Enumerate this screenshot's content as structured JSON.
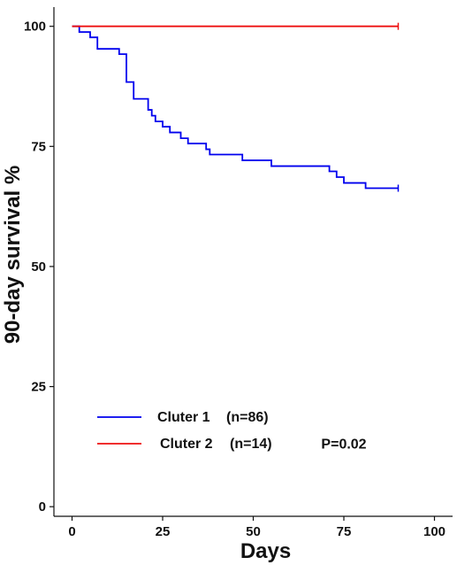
{
  "chart_data": {
    "type": "line",
    "subtype": "kaplan-meier step",
    "title": "",
    "xlabel": "Days",
    "ylabel": "90-day survival %",
    "xlim": [
      -5,
      105
    ],
    "ylim": [
      -2,
      104
    ],
    "xticks": [
      0,
      25,
      50,
      75,
      100
    ],
    "yticks": [
      0,
      25,
      50,
      75,
      100
    ],
    "xtick_labels": [
      "0",
      "25",
      "50",
      "75",
      "100"
    ],
    "ytick_labels": [
      "0",
      "25",
      "50",
      "75",
      "100"
    ],
    "grid": false,
    "legend_position": "bottom-left",
    "series": [
      {
        "name": "Cluter 1",
        "n_label": "(n=86)",
        "color": "#0000ee",
        "censor_marker": true,
        "points": [
          [
            0,
            100
          ],
          [
            2,
            100
          ],
          [
            2,
            98.8
          ],
          [
            5,
            98.8
          ],
          [
            5,
            97.7
          ],
          [
            7,
            97.7
          ],
          [
            7,
            95.3
          ],
          [
            13,
            95.3
          ],
          [
            13,
            94.2
          ],
          [
            15,
            94.2
          ],
          [
            15,
            88.4
          ],
          [
            17,
            88.4
          ],
          [
            17,
            84.9
          ],
          [
            21,
            84.9
          ],
          [
            21,
            82.6
          ],
          [
            22,
            82.6
          ],
          [
            22,
            81.4
          ],
          [
            23,
            81.4
          ],
          [
            23,
            80.2
          ],
          [
            25,
            80.2
          ],
          [
            25,
            79.1
          ],
          [
            27,
            79.1
          ],
          [
            27,
            77.9
          ],
          [
            30,
            77.9
          ],
          [
            30,
            76.7
          ],
          [
            32,
            76.7
          ],
          [
            32,
            75.6
          ],
          [
            37,
            75.6
          ],
          [
            37,
            74.4
          ],
          [
            38,
            74.4
          ],
          [
            38,
            73.3
          ],
          [
            47,
            73.3
          ],
          [
            47,
            72.1
          ],
          [
            55,
            72.1
          ],
          [
            55,
            70.9
          ],
          [
            71,
            70.9
          ],
          [
            71,
            69.8
          ],
          [
            73,
            69.8
          ],
          [
            73,
            68.6
          ],
          [
            75,
            68.6
          ],
          [
            75,
            67.4
          ],
          [
            81,
            67.4
          ],
          [
            81,
            66.3
          ],
          [
            90,
            66.3
          ]
        ]
      },
      {
        "name": "Cluter 2",
        "n_label": "(n=14)",
        "color": "#ee1111",
        "censor_marker": true,
        "points": [
          [
            0,
            100
          ],
          [
            90,
            100
          ]
        ]
      }
    ],
    "annotations": [
      {
        "text": "P=0.02",
        "x": 75,
        "y": 13
      }
    ]
  }
}
